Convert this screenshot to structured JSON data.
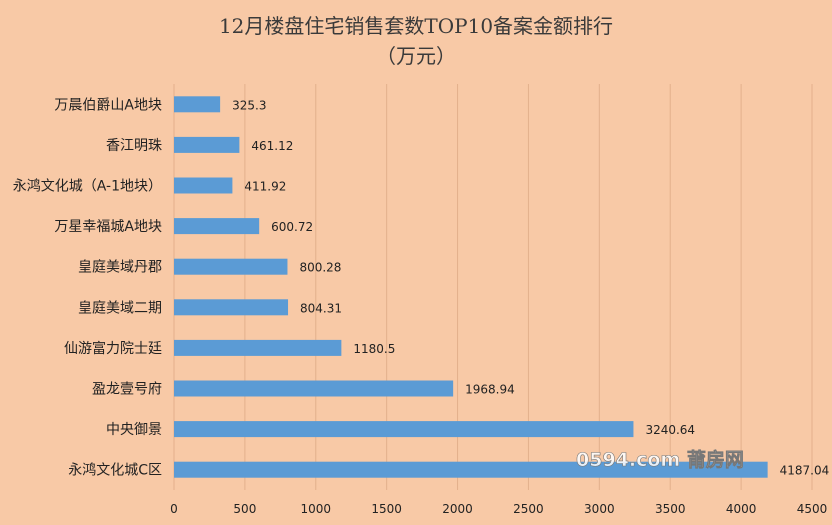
{
  "chart_data": {
    "type": "bar",
    "orientation": "horizontal",
    "title": "12月楼盘住宅销售套数TOP10备案金额排行",
    "subtitle": "（万元）",
    "categories": [
      "万晨伯爵山A地块",
      "香江明珠",
      "永鸿文化城（A-1地块）",
      "万星幸福城A地块",
      "皇庭美域丹郡",
      "皇庭美域二期",
      "仙游富力院士廷",
      "盈龙壹号府",
      "中央御景",
      "永鸿文化城C区"
    ],
    "values": [
      325.3,
      461.12,
      411.92,
      600.72,
      800.28,
      804.31,
      1180.5,
      1968.94,
      3240.64,
      4187.04
    ],
    "value_labels": [
      "325.3",
      "461.12",
      "411.92",
      "600.72",
      "800.28",
      "804.31",
      "1180.5",
      "1968.94",
      "3240.64",
      "4187.04"
    ],
    "xlim": [
      0,
      4500
    ],
    "x_ticks": [
      0,
      500,
      1000,
      1500,
      2000,
      2500,
      3000,
      3500,
      4000,
      4500
    ],
    "grid": "vertical",
    "bar_color": "#5b9bd5",
    "grid_color": "#e3b08c",
    "background_color": "#f8c9a6"
  },
  "watermark": "0594.com 莆房网"
}
